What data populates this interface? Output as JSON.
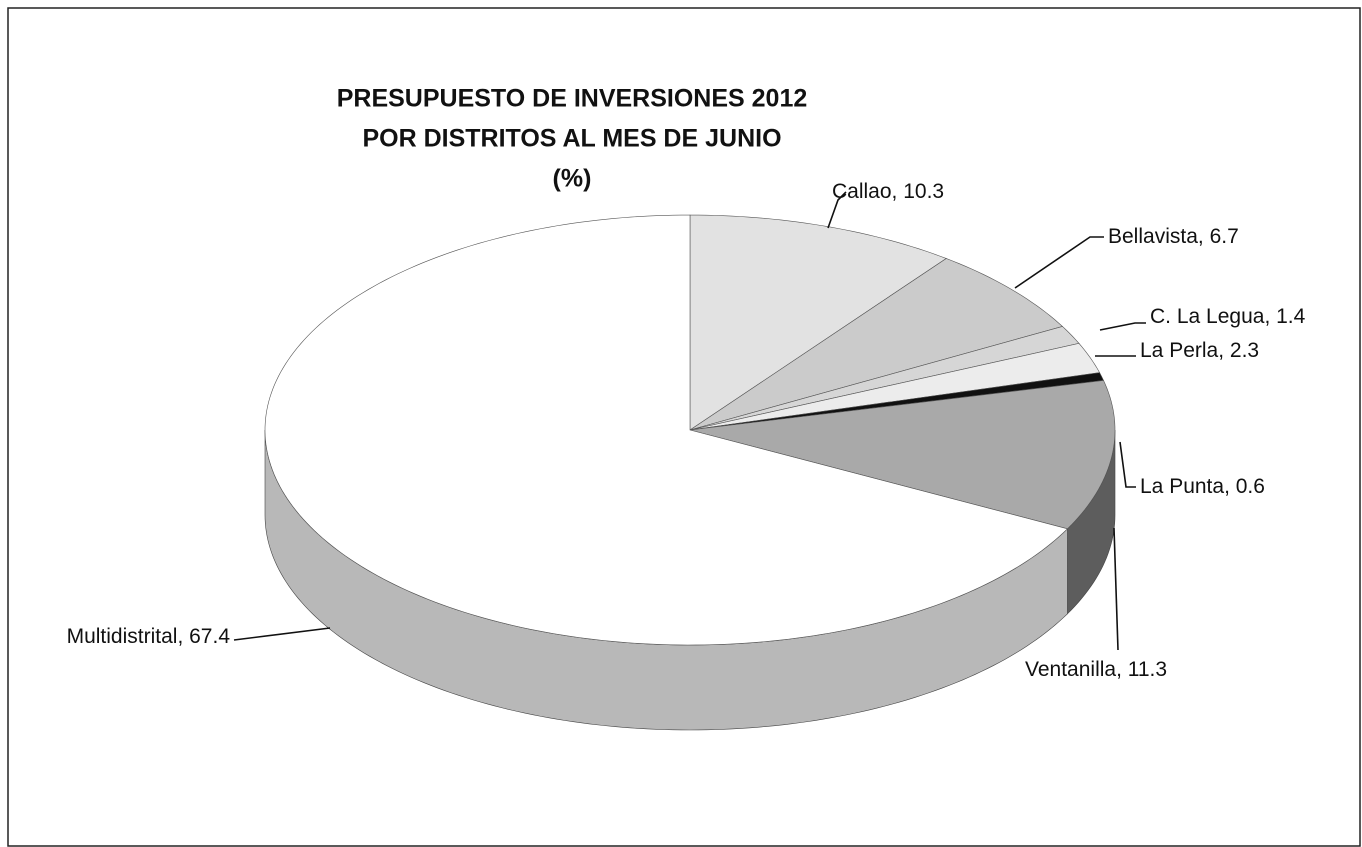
{
  "chart_data": {
    "type": "pie3d",
    "title": [
      "PRESUPUESTO DE INVERSIONES 2012",
      "POR DISTRITOS AL MES DE JUNIO",
      "(%)"
    ],
    "categories": [
      "Callao",
      "Bellavista",
      "C. La Legua",
      "La Perla",
      "La Punta",
      "Ventanilla",
      "Multidistrital"
    ],
    "values": [
      10.3,
      6.7,
      1.4,
      2.3,
      0.6,
      11.3,
      67.4
    ],
    "colors": [
      "#e2e2e2",
      "#cbcbcb",
      "#d6d6d6",
      "#ececec",
      "#111111",
      "#a9a9a9",
      "#ffffff"
    ],
    "label_separator": ", "
  }
}
